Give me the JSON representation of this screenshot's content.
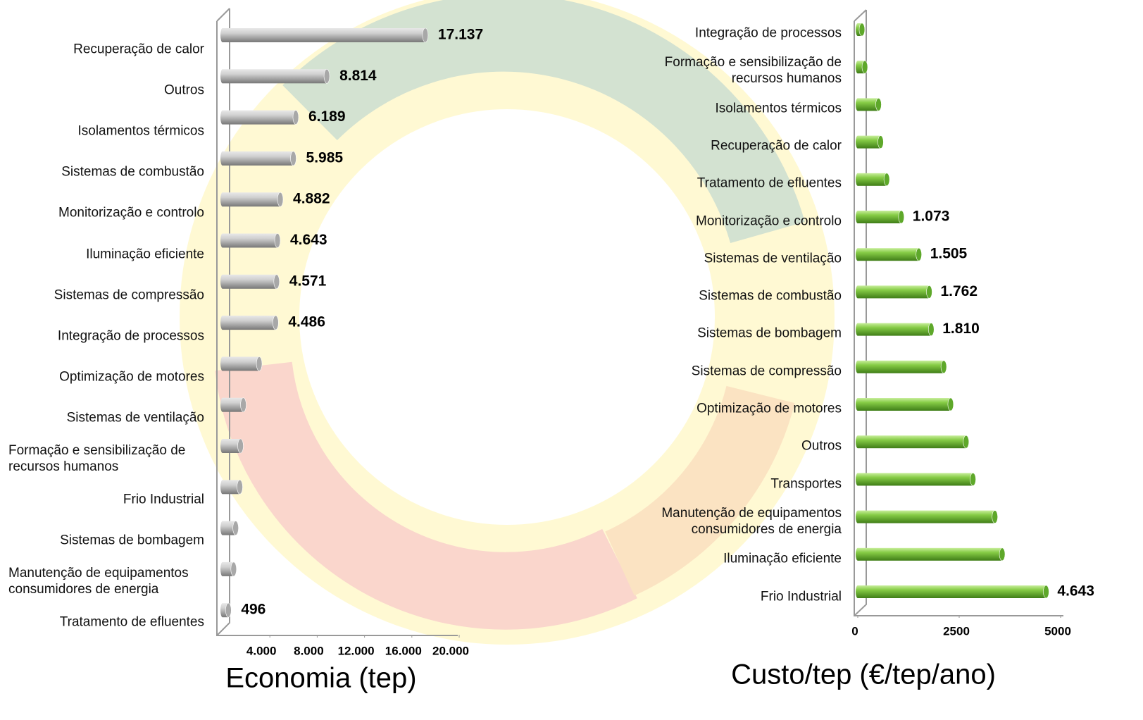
{
  "chart_data": [
    {
      "type": "bar",
      "orientation": "horizontal",
      "xlabel": "Economia (tep)",
      "color": "#b4b4b4",
      "categories": [
        "Recuperação de calor",
        "Outros",
        "Isolamentos térmicos",
        "Sistemas de combustão",
        "Monitorização e controlo",
        "Iluminação eficiente",
        "Sistemas de compressão",
        "Integração de processos",
        "Optimização de motores",
        "Sistemas de ventilação",
        "Formação e sensibilização de\nrecursos humanos",
        "Frio Industrial",
        "Sistemas de bombagem",
        "Manutenção de equipamentos\nconsumidores de energia",
        "Tratamento de efluentes"
      ],
      "values": [
        17137,
        8814,
        6189,
        5985,
        4882,
        4643,
        4571,
        4486,
        3100,
        1760,
        1520,
        1460,
        1110,
        940,
        496
      ],
      "value_labels": [
        "17.137",
        "8.814",
        "6.189",
        "5.985",
        "4.882",
        "4.643",
        "4.571",
        "4.486",
        null,
        null,
        null,
        null,
        null,
        null,
        "496"
      ],
      "xlim": [
        0,
        20000
      ],
      "xticks": [
        {
          "value": 4000,
          "label": "4.000"
        },
        {
          "value": 8000,
          "label": "8.000"
        },
        {
          "value": 12000,
          "label": "12.000"
        },
        {
          "value": 16000,
          "label": "16.000"
        },
        {
          "value": 20000,
          "label": "20.000"
        }
      ]
    },
    {
      "type": "bar",
      "orientation": "horizontal",
      "xlabel": "Custo/tep (€/tep/ano)",
      "color": "#7dc142",
      "categories": [
        "Integração de processos",
        "Formação e sensibilização de\nrecursos humanos",
        "Isolamentos térmicos",
        "Recuperação de calor",
        "Tratamento de efluentes",
        "Monitorização e controlo",
        "Sistemas de ventilação",
        "Sistemas de combustão",
        "Sistemas de bombagem",
        "Sistemas de compressão",
        "Optimização de motores",
        "Outros",
        "Transportes",
        "Manutenção de equipamentos\nconsumidores de energia",
        "Iluminação eficiente",
        "Frio Industrial"
      ],
      "values": [
        103,
        174,
        512,
        563,
        714,
        1073,
        1505,
        1762,
        1810,
        2120,
        2290,
        2670,
        2840,
        3380,
        3560,
        4643
      ],
      "value_labels": [
        null,
        null,
        null,
        null,
        null,
        "1.073",
        "1.505",
        "1.762",
        "1.810",
        null,
        null,
        null,
        null,
        null,
        null,
        "4.643"
      ],
      "xlim": [
        0,
        5000
      ],
      "xticks": [
        0,
        2500,
        5000
      ]
    }
  ]
}
